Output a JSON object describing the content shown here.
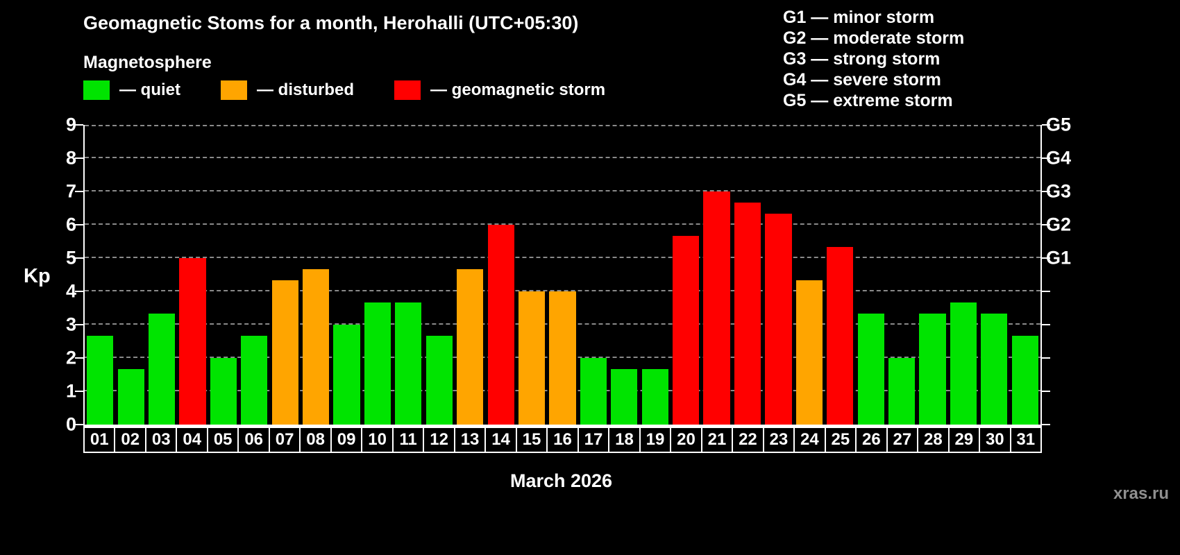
{
  "header": {
    "title": "Geomagnetic Stoms for a month, Herohalli (UTC+05:30)"
  },
  "magnetosphere": {
    "label": "Magnetosphere",
    "legend": [
      {
        "name": "quiet",
        "label": "— quiet",
        "color": "#00e400"
      },
      {
        "name": "disturbed",
        "label": "— disturbed",
        "color": "#ffa500"
      },
      {
        "name": "storm",
        "label": "— geomagnetic storm",
        "color": "#ff0000"
      }
    ]
  },
  "storm_scale": [
    {
      "label": "G1 — minor storm"
    },
    {
      "label": "G2 — moderate storm"
    },
    {
      "label": "G3 — strong storm"
    },
    {
      "label": "G4 — severe storm"
    },
    {
      "label": "G5 — extreme storm"
    }
  ],
  "chart_data": {
    "type": "bar",
    "title": "Geomagnetic Stoms for a month, Herohalli (UTC+05:30)",
    "xlabel": "March 2026",
    "ylabel": "Kp",
    "ylim": [
      0,
      9
    ],
    "yticks": [
      0,
      1,
      2,
      3,
      4,
      5,
      6,
      7,
      8,
      9
    ],
    "grid": "dashed-horizontal",
    "legend_position": "top-left",
    "right_axis": [
      {
        "label": "G1",
        "value": 5
      },
      {
        "label": "G2",
        "value": 6
      },
      {
        "label": "G3",
        "value": 7
      },
      {
        "label": "G4",
        "value": 8
      },
      {
        "label": "G5",
        "value": 9
      }
    ],
    "categories": [
      "01",
      "02",
      "03",
      "04",
      "05",
      "06",
      "07",
      "08",
      "09",
      "10",
      "11",
      "12",
      "13",
      "14",
      "15",
      "16",
      "17",
      "18",
      "19",
      "20",
      "21",
      "22",
      "23",
      "24",
      "25",
      "26",
      "27",
      "28",
      "29",
      "30",
      "31"
    ],
    "values": [
      2.67,
      1.67,
      3.33,
      5.0,
      2.0,
      2.67,
      4.33,
      4.67,
      3.0,
      3.67,
      3.67,
      2.67,
      4.67,
      6.0,
      4.0,
      4.0,
      2.0,
      1.67,
      1.67,
      5.67,
      7.0,
      6.67,
      6.33,
      4.33,
      5.33,
      3.33,
      2.0,
      3.33,
      3.67,
      3.33,
      2.67
    ],
    "statuses": [
      "quiet",
      "quiet",
      "quiet",
      "storm",
      "quiet",
      "quiet",
      "disturbed",
      "disturbed",
      "quiet",
      "quiet",
      "quiet",
      "quiet",
      "disturbed",
      "storm",
      "disturbed",
      "disturbed",
      "quiet",
      "quiet",
      "quiet",
      "storm",
      "storm",
      "storm",
      "storm",
      "disturbed",
      "storm",
      "quiet",
      "quiet",
      "quiet",
      "quiet",
      "quiet",
      "quiet"
    ],
    "series_colors": {
      "quiet": "#00e400",
      "disturbed": "#ffa500",
      "storm": "#ff0000"
    },
    "color_rule": {
      "quiet_below": 4,
      "disturbed_below": 5,
      "storm_from": 5
    }
  },
  "footer": {
    "xlabel": "March 2026",
    "watermark": "xras.ru"
  }
}
